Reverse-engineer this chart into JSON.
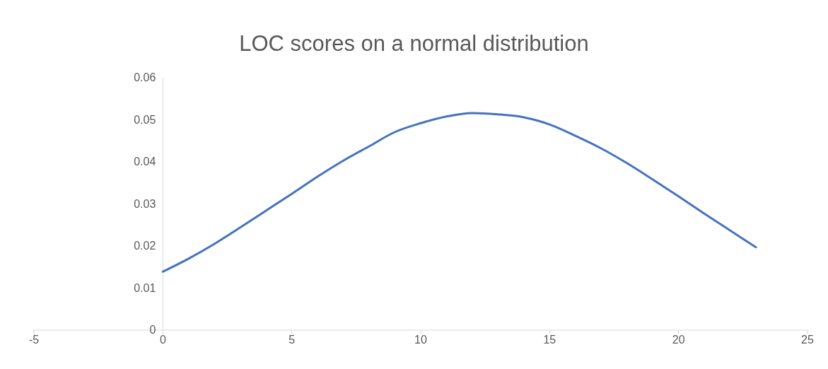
{
  "chart_data": {
    "type": "line",
    "title": "LOC scores on a normal distribution",
    "x": [
      0,
      1,
      2,
      3,
      4,
      5,
      6,
      7,
      8,
      9,
      10,
      11,
      12,
      13,
      14,
      15,
      16,
      17,
      18,
      19,
      20,
      21,
      22,
      23
    ],
    "series": [
      {
        "color": "#4472c4",
        "values": [
          0.0139,
          0.017,
          0.0205,
          0.0244,
          0.0284,
          0.0324,
          0.0365,
          0.0403,
          0.0437,
          0.0471,
          0.0492,
          0.0508,
          0.0516,
          0.0513,
          0.0506,
          0.0489,
          0.0462,
          0.0432,
          0.0397,
          0.0358,
          0.0318,
          0.0277,
          0.0237,
          0.0197
        ]
      }
    ],
    "xlim": [
      -5,
      25
    ],
    "xticks": [
      -5,
      0,
      5,
      10,
      15,
      20,
      25
    ],
    "ylim": [
      0,
      0.06
    ],
    "yticks": [
      0,
      0.01,
      0.02,
      0.03,
      0.04,
      0.05,
      0.06
    ],
    "grid": false,
    "legend": false,
    "marker": "none",
    "line_style": "solid"
  }
}
